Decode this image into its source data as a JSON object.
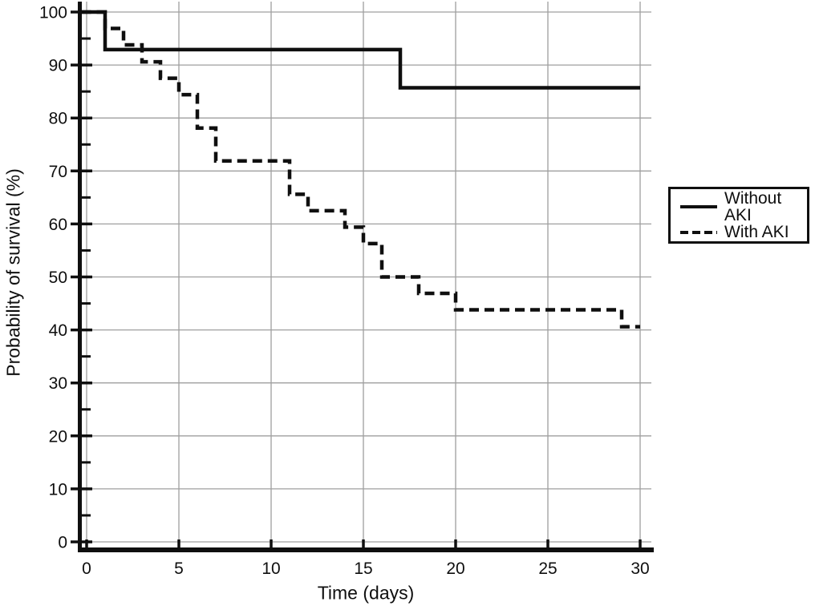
{
  "page": {
    "background": "#ffffff"
  },
  "chart_data": {
    "type": "line",
    "variant": "kaplan_meier_step",
    "title": "",
    "xlabel": "Time (days)",
    "ylabel": "Probability of survival (%)",
    "xlim": [
      0,
      30
    ],
    "ylim": [
      0,
      100
    ],
    "x_ticks": [
      0,
      5,
      10,
      15,
      20,
      25,
      30
    ],
    "y_ticks": [
      0,
      10,
      20,
      30,
      40,
      50,
      60,
      70,
      80,
      90,
      100
    ],
    "y_minor_ticks": [
      5,
      15,
      25,
      35,
      45,
      55,
      65,
      75,
      85,
      95
    ],
    "grid": "on",
    "legend_position": "outside-right",
    "series": [
      {
        "name": "Without AKI",
        "line_style": "solid",
        "color": "#0f0f0f",
        "end_time": 30,
        "steps": [
          [
            0,
            100
          ],
          [
            1,
            92.9
          ],
          [
            17,
            85.7
          ]
        ]
      },
      {
        "name": "With AKI",
        "line_style": "dashed",
        "color": "#0f0f0f",
        "end_time": 30,
        "steps": [
          [
            0,
            100
          ],
          [
            1,
            96.9
          ],
          [
            2,
            93.8
          ],
          [
            3,
            90.6
          ],
          [
            4,
            87.5
          ],
          [
            5,
            84.4
          ],
          [
            6,
            78.1
          ],
          [
            7,
            71.9
          ],
          [
            11,
            65.6
          ],
          [
            12,
            62.5
          ],
          [
            14,
            59.4
          ],
          [
            15,
            56.3
          ],
          [
            16,
            50
          ],
          [
            18,
            46.9
          ],
          [
            20,
            43.8
          ],
          [
            29,
            40.6
          ]
        ]
      }
    ]
  },
  "axes": {
    "x_label": "Time (days)",
    "y_label": "Probability of survival (%)"
  },
  "legend": {
    "items": [
      {
        "label": "Without AKI",
        "style": "solid"
      },
      {
        "label": "With AKI",
        "style": "dashed"
      }
    ]
  },
  "colors": {
    "ink": "#0f0f0f",
    "grid": "#9f9f9f",
    "background": "#ffffff"
  }
}
